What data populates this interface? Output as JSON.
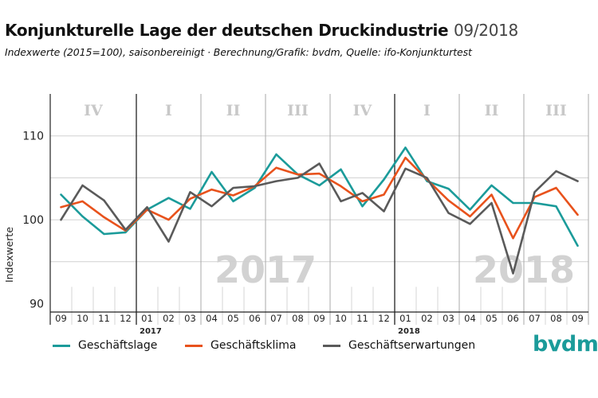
{
  "header": {
    "title": "Konjunkturelle Lage der deutschen Druckindustrie",
    "date": "09/2018",
    "subtitle": "Indexwerte (2015=100), saisonbereinigt · Berechnung/Grafik: bvdm, Quelle: ifo-Konjunkturtest"
  },
  "logo": "bvdm.",
  "chart_data": {
    "type": "line",
    "ylabel": "Indexwerte",
    "ylim": [
      89,
      115
    ],
    "yticks": [
      90,
      100,
      110
    ],
    "grid": true,
    "x": [
      "09",
      "10",
      "11",
      "12",
      "01",
      "02",
      "03",
      "04",
      "05",
      "06",
      "07",
      "08",
      "09",
      "10",
      "11",
      "12",
      "01",
      "02",
      "03",
      "04",
      "05",
      "06",
      "07",
      "08",
      "09"
    ],
    "year_labels": [
      {
        "label": "2017",
        "index": 4
      },
      {
        "label": "2018",
        "index": 16
      }
    ],
    "year_watermarks": [
      {
        "label": "2017",
        "center": 9.5
      },
      {
        "label": "2018",
        "center": 21.5
      }
    ],
    "quarters": [
      {
        "label": "IV",
        "start": 0,
        "end": 4
      },
      {
        "label": "I",
        "start": 4,
        "end": 7
      },
      {
        "label": "II",
        "start": 7,
        "end": 10
      },
      {
        "label": "III",
        "start": 10,
        "end": 13
      },
      {
        "label": "IV",
        "start": 13,
        "end": 16
      },
      {
        "label": "I",
        "start": 16,
        "end": 19
      },
      {
        "label": "II",
        "start": 19,
        "end": 22
      },
      {
        "label": "III",
        "start": 22,
        "end": 25
      }
    ],
    "series": [
      {
        "name": "Geschäftslage",
        "color": "#1b9b9a",
        "values": [
          103.0,
          100.4,
          98.3,
          98.5,
          101.2,
          102.6,
          101.3,
          105.7,
          102.2,
          103.8,
          107.8,
          105.4,
          104.1,
          106.0,
          101.6,
          104.8,
          108.6,
          104.6,
          103.7,
          101.2,
          104.1,
          102.0,
          102.0,
          101.6,
          96.9
        ]
      },
      {
        "name": "Geschäftsklima",
        "color": "#e8521c",
        "values": [
          101.5,
          102.2,
          100.3,
          98.7,
          101.2,
          100.0,
          102.5,
          103.6,
          102.9,
          104.0,
          106.2,
          105.4,
          105.5,
          104.0,
          102.2,
          103.0,
          107.4,
          104.8,
          102.3,
          100.4,
          103.0,
          97.8,
          102.7,
          103.8,
          100.6
        ]
      },
      {
        "name": "Geschäftserwartungen",
        "color": "#5a5a5a",
        "values": [
          100.0,
          104.1,
          102.3,
          98.8,
          101.5,
          97.4,
          103.3,
          101.6,
          103.8,
          104.0,
          104.6,
          105.0,
          106.7,
          102.2,
          103.2,
          101.0,
          106.1,
          105.0,
          100.8,
          99.5,
          102.0,
          93.6,
          103.3,
          105.8,
          104.6
        ]
      }
    ]
  }
}
